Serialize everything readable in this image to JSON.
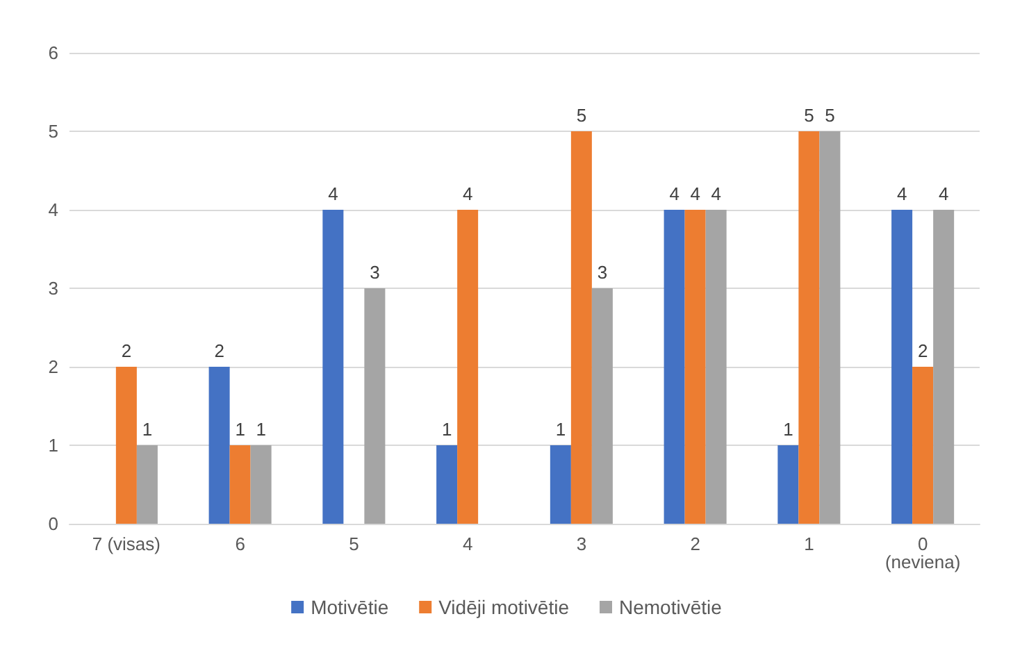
{
  "chart_data": {
    "type": "bar",
    "categories": [
      "7 (visas)",
      "6",
      "5",
      "4",
      "3",
      "2",
      "1",
      "0\n(neviena)"
    ],
    "series": [
      {
        "name": "Motivētie",
        "color": "#4472c4",
        "values": [
          null,
          2,
          4,
          1,
          1,
          4,
          1,
          4
        ]
      },
      {
        "name": "Vidēji motivētie",
        "color": "#ed7d31",
        "values": [
          2,
          1,
          null,
          4,
          5,
          4,
          5,
          2
        ]
      },
      {
        "name": "Nemotivētie",
        "color": "#a5a5a5",
        "values": [
          1,
          1,
          3,
          null,
          3,
          4,
          5,
          4
        ]
      }
    ],
    "ylim": [
      0,
      6
    ],
    "yticks": [
      0,
      1,
      2,
      3,
      4,
      5,
      6
    ],
    "grid": "y",
    "legend": "bottom",
    "data_labels": true
  }
}
